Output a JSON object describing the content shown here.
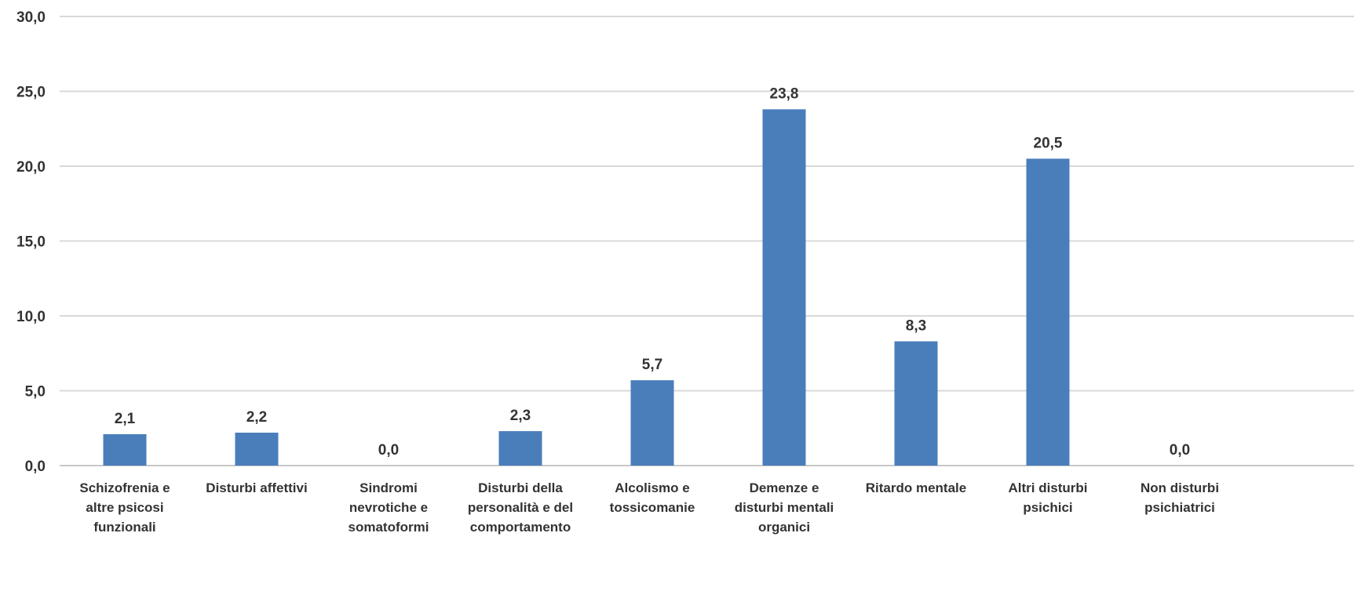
{
  "chart_data": {
    "type": "bar",
    "title": "",
    "xlabel": "",
    "ylabel": "",
    "ylim": [
      0,
      30
    ],
    "yticks": [
      "0,0",
      "5,0",
      "10,0",
      "15,0",
      "20,0",
      "25,0",
      "30,0"
    ],
    "grid": true,
    "legend": "none",
    "bar_color": "#4a7ebb",
    "categories": [
      [
        "Schizofrenia e",
        "altre psicosi",
        "funzionali"
      ],
      [
        "Disturbi affettivi"
      ],
      [
        "Sindromi",
        "nevrotiche e",
        "somatoformi"
      ],
      [
        "Disturbi della",
        "personalità e del",
        "comportamento"
      ],
      [
        "Alcolismo e",
        "tossicomanie"
      ],
      [
        "Demenze e",
        "disturbi mentali",
        "organici"
      ],
      [
        "Ritardo mentale"
      ],
      [
        "Altri disturbi",
        "psichici"
      ],
      [
        "Non disturbi",
        "psichiatrici"
      ]
    ],
    "values": [
      2.1,
      2.2,
      0.0,
      2.3,
      5.7,
      23.8,
      8.3,
      20.5,
      0.0
    ],
    "value_labels": [
      "2,1",
      "2,2",
      "0,0",
      "2,3",
      "5,7",
      "23,8",
      "8,3",
      "20,5",
      "0,0"
    ]
  }
}
